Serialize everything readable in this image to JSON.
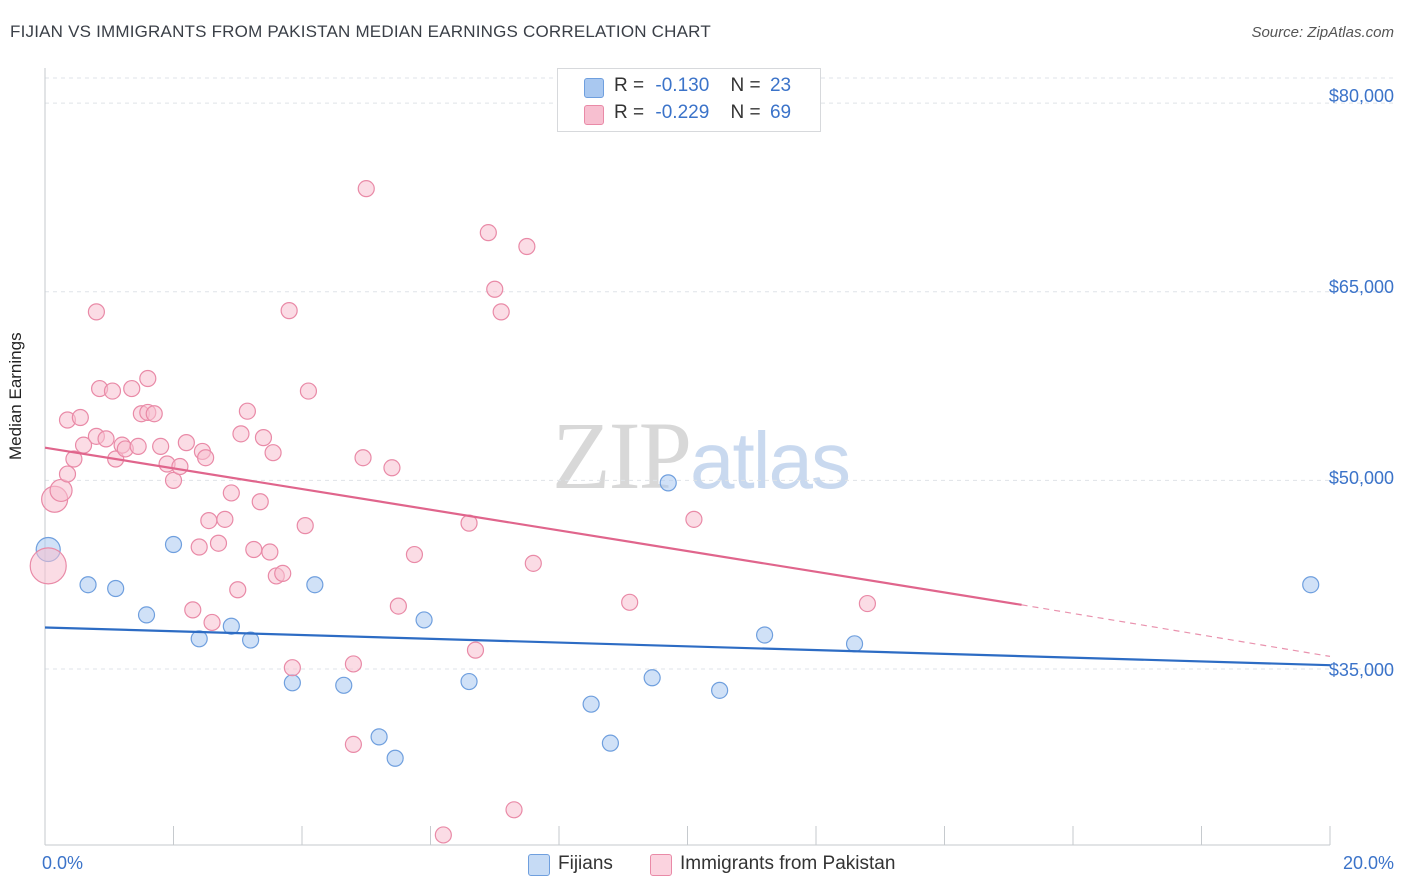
{
  "title": "FIJIAN VS IMMIGRANTS FROM PAKISTAN MEDIAN EARNINGS CORRELATION CHART",
  "source": "Source: ZipAtlas.com",
  "watermark": {
    "zip": "ZIP",
    "atlas": "atlas"
  },
  "legend": {
    "r_label": "R =",
    "n_label": "N =",
    "rows": [
      {
        "r": "-0.130",
        "n": "23",
        "color": "#a9c8f0",
        "border": "#6f9fde"
      },
      {
        "r": "-0.229",
        "n": "69",
        "color": "#f7bfd0",
        "border": "#e98aa7"
      }
    ]
  },
  "bottom_legend": [
    "Fijians",
    "Immigrants from Pakistan"
  ],
  "axes": {
    "x_min_label": "0.0%",
    "x_max_label": "20.0%",
    "y_label": "Median Earnings",
    "y_ticks": [
      "$80,000",
      "$65,000",
      "$50,000",
      "$35,000"
    ]
  },
  "chart_data": {
    "type": "scatter",
    "xlabel": "",
    "ylabel": "Median Earnings",
    "xlim": [
      0,
      20
    ],
    "ylim": [
      21000,
      82000
    ],
    "y_ticks": [
      35000,
      50000,
      65000,
      80000
    ],
    "grid": true,
    "series": [
      {
        "name": "Fijians",
        "color": "#a9c8f0",
        "stroke": "#6f9fde",
        "trend": {
          "x0": 0,
          "y0": 38300,
          "x1": 20,
          "y1": 35300,
          "color": "#2d6cc4"
        },
        "points": [
          [
            0.05,
            44500
          ],
          [
            0.67,
            41700
          ],
          [
            1.1,
            41400
          ],
          [
            1.58,
            39300
          ],
          [
            2.0,
            44900
          ],
          [
            2.4,
            37400
          ],
          [
            2.9,
            38400
          ],
          [
            3.2,
            37300
          ],
          [
            3.85,
            33900
          ],
          [
            4.2,
            41700
          ],
          [
            4.65,
            33700
          ],
          [
            5.2,
            29600
          ],
          [
            5.45,
            27900
          ],
          [
            5.9,
            38900
          ],
          [
            6.6,
            34000
          ],
          [
            8.5,
            32200
          ],
          [
            8.8,
            29100
          ],
          [
            9.45,
            34300
          ],
          [
            9.7,
            49800
          ],
          [
            10.5,
            33300
          ],
          [
            11.2,
            37700
          ],
          [
            12.6,
            37000
          ],
          [
            19.7,
            41700
          ]
        ]
      },
      {
        "name": "Immigrants from Pakistan",
        "color": "#f7bfd0",
        "stroke": "#e98aa7",
        "trend": {
          "x0": 0,
          "y0": 52600,
          "x1": 15.2,
          "y1": 40100,
          "dash_x1": 20,
          "dash_y1": 36000,
          "color": "#e0658c"
        },
        "points": [
          [
            0.05,
            43200
          ],
          [
            0.15,
            48500
          ],
          [
            0.25,
            49200
          ],
          [
            0.35,
            50500
          ],
          [
            0.45,
            51700
          ],
          [
            0.35,
            54800
          ],
          [
            0.55,
            55000
          ],
          [
            0.6,
            52800
          ],
          [
            0.8,
            63400
          ],
          [
            0.8,
            53500
          ],
          [
            0.85,
            57300
          ],
          [
            0.95,
            53300
          ],
          [
            1.05,
            57100
          ],
          [
            1.1,
            51700
          ],
          [
            1.2,
            52800
          ],
          [
            1.25,
            52500
          ],
          [
            1.35,
            57300
          ],
          [
            1.45,
            52700
          ],
          [
            1.5,
            55300
          ],
          [
            1.6,
            55400
          ],
          [
            1.6,
            58100
          ],
          [
            1.7,
            55300
          ],
          [
            1.8,
            52700
          ],
          [
            1.9,
            51300
          ],
          [
            2.0,
            50000
          ],
          [
            2.1,
            51100
          ],
          [
            2.2,
            53000
          ],
          [
            2.3,
            39700
          ],
          [
            2.4,
            44700
          ],
          [
            2.45,
            52300
          ],
          [
            2.5,
            51800
          ],
          [
            2.55,
            46800
          ],
          [
            2.6,
            38700
          ],
          [
            2.7,
            45000
          ],
          [
            2.8,
            46900
          ],
          [
            2.9,
            49000
          ],
          [
            3.0,
            41300
          ],
          [
            3.05,
            53700
          ],
          [
            3.15,
            55500
          ],
          [
            3.25,
            44500
          ],
          [
            3.35,
            48300
          ],
          [
            3.4,
            53400
          ],
          [
            3.5,
            44300
          ],
          [
            3.55,
            52200
          ],
          [
            3.6,
            42400
          ],
          [
            3.7,
            42600
          ],
          [
            3.8,
            63500
          ],
          [
            3.85,
            35100
          ],
          [
            4.05,
            46400
          ],
          [
            4.1,
            57100
          ],
          [
            4.8,
            35400
          ],
          [
            4.8,
            29000
          ],
          [
            4.95,
            51800
          ],
          [
            5.0,
            73200
          ],
          [
            5.4,
            51000
          ],
          [
            5.5,
            40000
          ],
          [
            5.75,
            44100
          ],
          [
            6.2,
            21800
          ],
          [
            6.6,
            46600
          ],
          [
            6.7,
            36500
          ],
          [
            6.9,
            69700
          ],
          [
            7.0,
            65200
          ],
          [
            7.1,
            63400
          ],
          [
            7.3,
            23800
          ],
          [
            7.5,
            68600
          ],
          [
            7.6,
            43400
          ],
          [
            9.1,
            40300
          ],
          [
            10.1,
            46900
          ],
          [
            12.8,
            40200
          ]
        ]
      }
    ]
  }
}
